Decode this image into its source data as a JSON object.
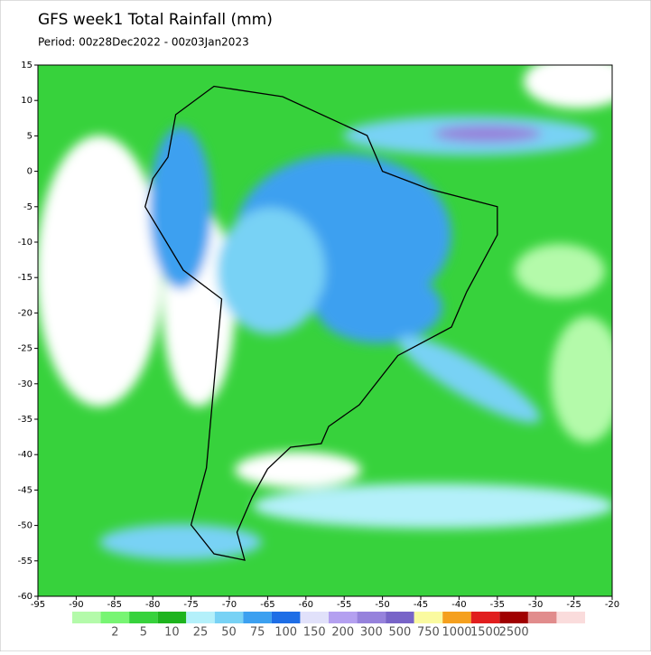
{
  "header": {
    "title": "GFS week1 Total Rainfall (mm)",
    "period": "Period: 00z28Dec2022 - 00z03Jan2023"
  },
  "map": {
    "xlim": [
      -95,
      -20
    ],
    "ylim": [
      -60,
      15
    ],
    "xticks": [
      -95,
      -90,
      -85,
      -80,
      -75,
      -70,
      -65,
      -60,
      -55,
      -50,
      -45,
      -40,
      -35,
      -30,
      -25,
      -20
    ],
    "yticks": [
      15,
      10,
      5,
      0,
      -5,
      -10,
      -15,
      -20,
      -25,
      -30,
      -35,
      -40,
      -45,
      -50,
      -55,
      -60
    ]
  },
  "colorbar": {
    "labels": [
      "2",
      "5",
      "10",
      "25",
      "50",
      "75",
      "100",
      "150",
      "200",
      "300",
      "500",
      "750",
      "1000",
      "1500",
      "2500"
    ],
    "colors": [
      "#b4faaa",
      "#78f573",
      "#37d23c",
      "#1eb41e",
      "#b4f0fa",
      "#78d2f5",
      "#3ca0f0",
      "#1e6ee6",
      "#e1e1fa",
      "#b4a0f0",
      "#9682dc",
      "#7864c8",
      "#fafaa0",
      "#f5a01e",
      "#e11e1e",
      "#a00000",
      "#e18c8c",
      "#fadcdc"
    ]
  }
}
